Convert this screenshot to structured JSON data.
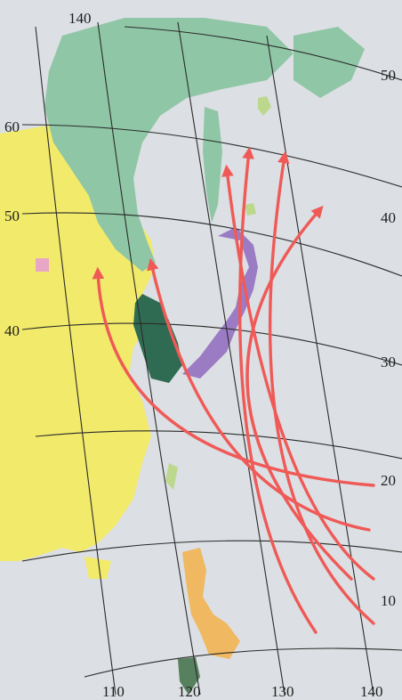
{
  "colors": {
    "sea": "#dcdfe3",
    "paper": "#ffffff",
    "russia_far_east": "#8fc7a6",
    "korea": "#2f6b52",
    "japan": "#9b7cc4",
    "china": "#f2ea6a",
    "mongolia_pink": "#e7a6c6",
    "philippines": "#f0b860",
    "indonesia": "#56805e",
    "green_islands": "#bcd88c",
    "route_arrows": "#ef5a57",
    "grid": "#2b2b2b"
  },
  "labels": {
    "lon_140_top": "140",
    "lat_60_left": "60",
    "lat_50_left": "50",
    "lat_40_left": "40",
    "lat_50_right": "50",
    "lat_40_right": "40",
    "lat_30_right": "30",
    "lat_20_right": "20",
    "lat_10_right": "10",
    "lon_110_bottom": "110",
    "lon_120_bottom": "120",
    "lon_130_bottom": "130",
    "lon_140_bottom": "140"
  },
  "map_features": [
    "typhoon-tracks",
    "russia-far-east",
    "sakhalin",
    "korea",
    "japan",
    "china",
    "philippines",
    "kuril-islands"
  ]
}
